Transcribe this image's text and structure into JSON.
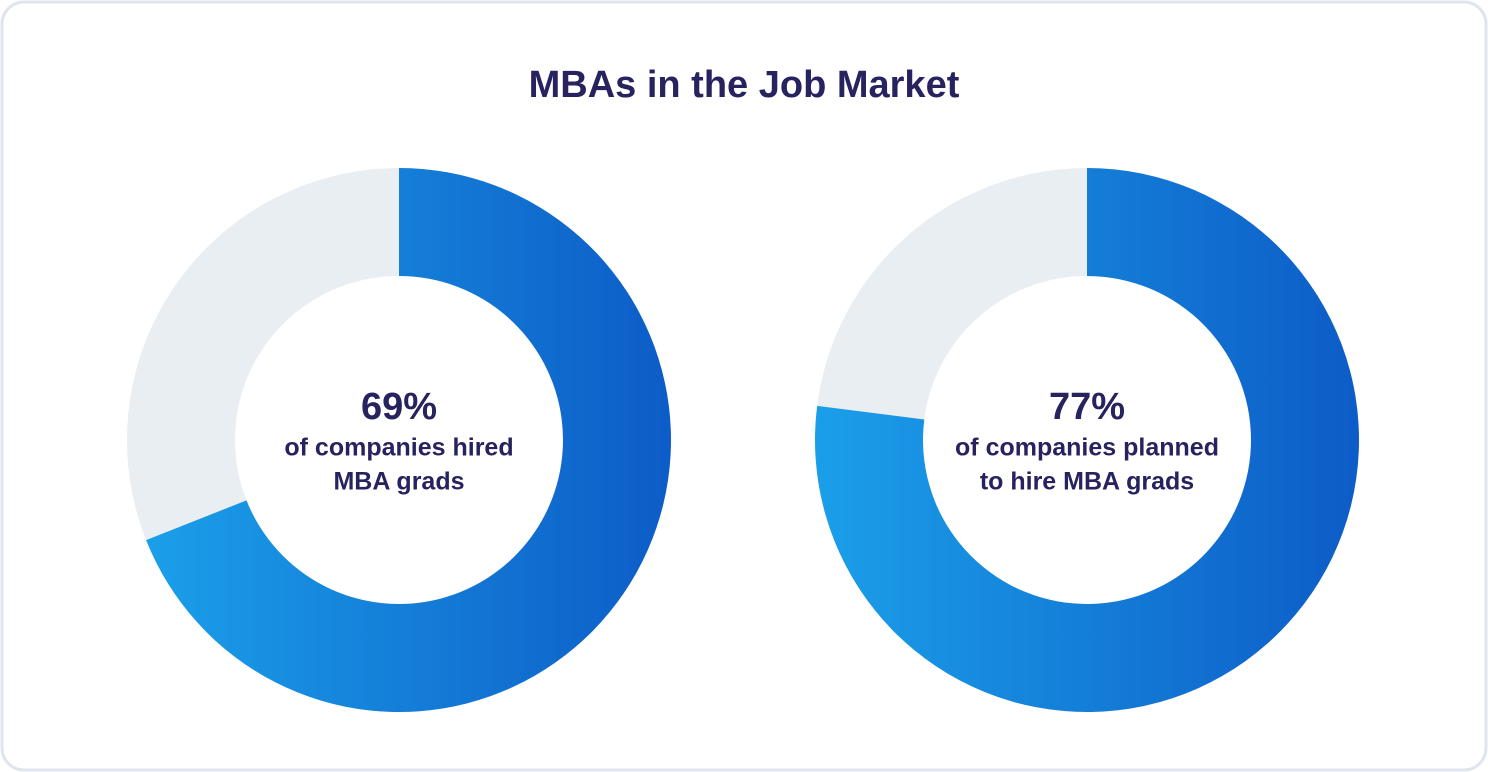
{
  "title": "MBAs in the Job Market",
  "chart_data": [
    {
      "type": "donut",
      "values": [
        69
      ],
      "value_labels": [
        "69%"
      ],
      "caption": [
        "of companies hired",
        "MBA grads"
      ],
      "gradient": [
        "#1b9fe9",
        "#0d5cc7"
      ],
      "track_color": "#e9eef3"
    },
    {
      "type": "donut",
      "values": [
        77
      ],
      "value_labels": [
        "77%"
      ],
      "caption": [
        "of companies planned",
        "to hire MBA grads"
      ],
      "gradient": [
        "#1b9fe9",
        "#0d5cc7"
      ],
      "track_color": "#e9eef3"
    }
  ]
}
